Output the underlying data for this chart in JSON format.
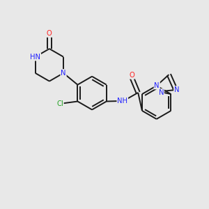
{
  "background_color": "#e8e8e8",
  "bond_color": "#1a1a1a",
  "atom_colors": {
    "N": "#2020ff",
    "O": "#ff2020",
    "Cl": "#20a020",
    "C": "#1a1a1a"
  },
  "lw": 1.4,
  "fs": 7.2,
  "xlim": [
    0,
    10
  ],
  "ylim": [
    0,
    10
  ]
}
